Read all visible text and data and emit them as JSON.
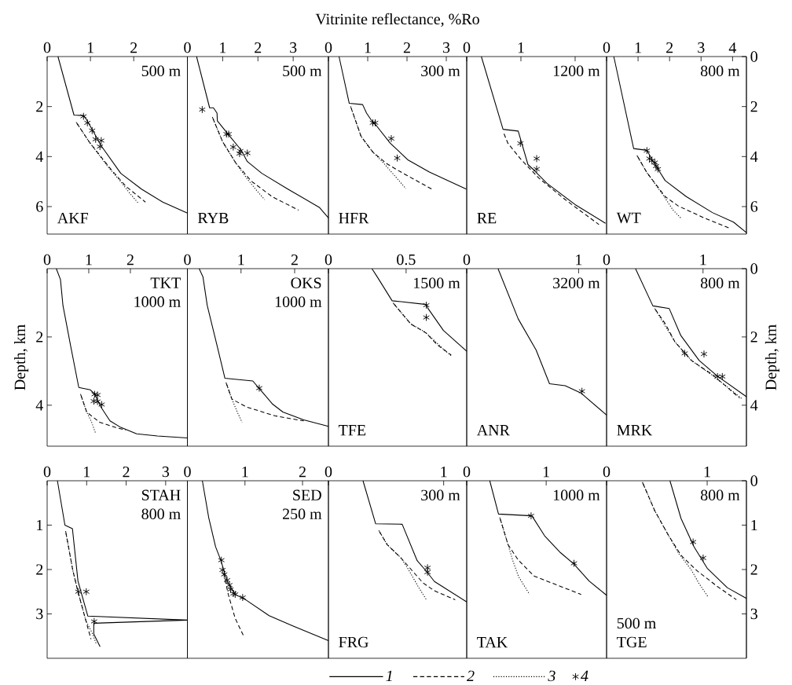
{
  "chart_data": [
    {
      "type": "line",
      "xlim": [
        0,
        3.24
      ],
      "xticks": [
        0,
        1,
        2
      ],
      "ylim": [
        7.1,
        0
      ],
      "yticks": [
        2,
        4,
        6
      ],
      "annotations": [
        "500 m",
        "AKF"
      ],
      "series": [
        {
          "type": "line",
          "line_style": "solid",
          "color": "#000000",
          "x": [
            0.25,
            0.62,
            0.84,
            0.91,
            1.27,
            1.7,
            2.18,
            2.67,
            3.24
          ],
          "values": [
            0,
            2.34,
            2.36,
            2.52,
            3.62,
            4.67,
            5.3,
            5.82,
            6.26
          ]
        },
        {
          "type": "line",
          "line_style": "dashed",
          "color": "#000000",
          "x": [
            0.65,
            0.97,
            1.45,
            1.82,
            2.27
          ],
          "values": [
            2.57,
            3.41,
            4.46,
            5.19,
            5.82
          ]
        },
        {
          "type": "line",
          "line_style": "dotted",
          "color": "#000000",
          "x": [
            0.65,
            0.97,
            1.4,
            1.7,
            1.9,
            2.1
          ],
          "values": [
            2.57,
            3.41,
            4.4,
            5.0,
            5.45,
            5.85
          ]
        },
        {
          "type": "scatter",
          "marker": "cross",
          "color": "#000000",
          "x": [
            0.84,
            0.93,
            1.04,
            1.12,
            1.25,
            1.22
          ],
          "values": [
            2.39,
            2.65,
            2.96,
            3.31,
            3.36,
            3.6
          ]
        }
      ]
    },
    {
      "type": "line",
      "xlim": [
        0,
        4.0
      ],
      "xticks": [
        0,
        1,
        2,
        3
      ],
      "ylim": [
        7.1,
        0
      ],
      "tick_labels": "x",
      "annotations": [
        "500 m",
        "RYB"
      ],
      "series": [
        {
          "type": "line",
          "line_style": "solid",
          "color": "#000000",
          "x": [
            0.26,
            0.63,
            0.74,
            0.84,
            0.85,
            1.15,
            1.52,
            1.7,
            2.11,
            2.85,
            3.74,
            4.0
          ],
          "values": [
            0,
            2.05,
            2.05,
            2.26,
            2.57,
            3.1,
            3.73,
            4.2,
            4.67,
            5.3,
            6.03,
            6.45
          ]
        },
        {
          "type": "line",
          "line_style": "dashed",
          "color": "#000000",
          "x": [
            0.69,
            1.0,
            1.37,
            1.81,
            2.41,
            3.15
          ],
          "values": [
            2.36,
            3.41,
            4.25,
            4.98,
            5.61,
            6.14
          ]
        },
        {
          "type": "line",
          "line_style": "dotted",
          "color": "#000000",
          "x": [
            0.69,
            1.0,
            1.37,
            1.7,
            1.93,
            2.19
          ],
          "values": [
            2.36,
            3.41,
            4.25,
            4.9,
            5.3,
            5.72
          ]
        },
        {
          "type": "scatter",
          "marker": "cross",
          "color": "#000000",
          "x": [
            0.42,
            1.11,
            1.17,
            1.3,
            1.5,
            1.48,
            1.7
          ],
          "values": [
            2.12,
            3.1,
            3.1,
            3.62,
            3.78,
            3.88,
            3.86
          ]
        }
      ]
    },
    {
      "type": "line",
      "xlabel": "Vitrinite reflectance, %Ro",
      "xlim": [
        0,
        3.52
      ],
      "xticks": [
        0,
        1,
        2,
        3
      ],
      "ylim": [
        7.1,
        0
      ],
      "tick_labels": "x",
      "annotations": [
        "300 m",
        "HFR"
      ],
      "series": [
        {
          "type": "line",
          "line_style": "solid",
          "color": "#000000",
          "x": [
            0.27,
            0.53,
            0.87,
            0.97,
            1.13,
            1.23,
            1.57,
            2.03,
            2.57,
            3.51
          ],
          "values": [
            0,
            1.87,
            1.92,
            2.26,
            2.63,
            2.78,
            3.46,
            4.14,
            4.62,
            5.3
          ]
        },
        {
          "type": "line",
          "line_style": "dashed",
          "color": "#000000",
          "x": [
            0.55,
            0.83,
            1.13,
            1.49,
            1.89,
            2.63
          ],
          "values": [
            1.93,
            3.19,
            3.82,
            4.29,
            4.66,
            5.3
          ]
        },
        {
          "type": "line",
          "line_style": "dotted",
          "color": "#000000",
          "x": [
            0.55,
            0.83,
            1.13,
            1.4,
            1.65,
            1.97
          ],
          "values": [
            1.93,
            3.19,
            3.82,
            4.25,
            4.7,
            5.28
          ]
        },
        {
          "type": "scatter",
          "marker": "cross",
          "color": "#000000",
          "x": [
            1.13,
            1.19,
            1.6,
            1.75
          ],
          "values": [
            2.65,
            2.65,
            3.28,
            4.06
          ]
        }
      ]
    },
    {
      "type": "line",
      "xlim": [
        0,
        2.58
      ],
      "xticks": [
        0,
        1,
        {
          "value": 2,
          "label": null
        }
      ],
      "ylim": [
        7.1,
        0
      ],
      "tick_labels": "x",
      "annotations": [
        "1200 m",
        "RE"
      ],
      "series": [
        {
          "type": "line",
          "line_style": "solid",
          "color": "#000000",
          "x": [
            0.27,
            0.67,
            0.95,
            1.13,
            1.24,
            1.48,
            2.0,
            2.56
          ],
          "values": [
            0,
            2.91,
            2.98,
            4.32,
            4.54,
            5.07,
            5.92,
            6.67
          ]
        },
        {
          "type": "line",
          "line_style": "dashed",
          "color": "#000000",
          "x": [
            0.67,
            0.76,
            1.0,
            1.33,
            1.81,
            2.44
          ],
          "values": [
            2.99,
            3.47,
            4.11,
            4.86,
            5.71,
            6.72
          ]
        },
        {
          "type": "scatter",
          "marker": "cross",
          "color": "#000000",
          "x": [
            0.99,
            1.29,
            1.29
          ],
          "values": [
            3.47,
            4.08,
            4.5
          ]
        }
      ]
    },
    {
      "type": "line",
      "xlim": [
        0,
        4.44
      ],
      "xticks": [
        0,
        1,
        2,
        3,
        4
      ],
      "ylim": [
        7.1,
        0
      ],
      "y2lim": [
        7.1,
        0
      ],
      "y2ticks": [
        0,
        2,
        4,
        6
      ],
      "annotations": [
        "800 m",
        "WT"
      ],
      "series": [
        {
          "type": "line",
          "line_style": "solid",
          "color": "#000000",
          "x": [
            0.23,
            0.86,
            1.28,
            1.44,
            1.65,
            1.86,
            2.53,
            3.36,
            4.03,
            4.44
          ],
          "values": [
            0,
            3.68,
            3.75,
            4.11,
            4.54,
            4.96,
            5.6,
            6.24,
            6.62,
            7.04
          ]
        },
        {
          "type": "line",
          "line_style": "dashed",
          "color": "#000000",
          "x": [
            0.94,
            1.28,
            1.86,
            2.28,
            3.11,
            3.94
          ],
          "values": [
            3.9,
            4.64,
            5.6,
            5.98,
            6.46,
            6.88
          ]
        },
        {
          "type": "line",
          "line_style": "dotted",
          "color": "#000000",
          "x": [
            0.94,
            1.28,
            1.8,
            2.11,
            2.36
          ],
          "values": [
            3.9,
            4.64,
            5.55,
            6.14,
            6.46
          ]
        },
        {
          "type": "scatter",
          "marker": "cross",
          "color": "#000000",
          "x": [
            1.28,
            1.36,
            1.44,
            1.53,
            1.57,
            1.63
          ],
          "values": [
            3.76,
            4.08,
            4.16,
            4.24,
            4.38,
            4.5
          ]
        }
      ]
    },
    {
      "type": "line",
      "ylabel": "Depth, km",
      "xlim": [
        0,
        3.37
      ],
      "xticks": [
        0,
        1,
        2
      ],
      "ylim": [
        5.2,
        0
      ],
      "yticks": [
        2,
        4
      ],
      "annotations": [
        "TKT",
        "1000 m"
      ],
      "series": [
        {
          "type": "line",
          "line_style": "solid",
          "color": "#000000",
          "x": [
            0.22,
            0.32,
            0.38,
            0.57,
            0.76,
            1.04,
            1.14,
            1.29,
            1.51,
            1.77,
            2.15,
            2.65,
            3.37
          ],
          "values": [
            0,
            0.32,
            1.08,
            2.3,
            3.48,
            3.55,
            3.67,
            4.05,
            4.46,
            4.65,
            4.84,
            4.9,
            4.96
          ]
        },
        {
          "type": "line",
          "line_style": "dashed",
          "color": "#000000",
          "x": [
            0.79,
            0.95,
            1.26,
            1.64,
            1.89
          ],
          "values": [
            3.63,
            4.2,
            4.5,
            4.65,
            4.73
          ]
        },
        {
          "type": "line",
          "line_style": "dotted",
          "color": "#000000",
          "x": [
            0.79,
            0.95,
            1.07,
            1.17
          ],
          "values": [
            3.63,
            4.2,
            4.5,
            4.84
          ]
        },
        {
          "type": "scatter",
          "marker": "cross",
          "color": "#000000",
          "x": [
            1.14,
            1.21,
            1.12,
            1.21,
            1.31
          ],
          "values": [
            3.68,
            3.7,
            3.88,
            3.89,
            3.98
          ]
        }
      ]
    },
    {
      "type": "line",
      "xlim": [
        0,
        2.63
      ],
      "xticks": [
        0,
        1,
        2
      ],
      "ylim": [
        5.2,
        0
      ],
      "tick_labels": "x",
      "annotations": [
        "OKS",
        "1000 m"
      ],
      "series": [
        {
          "type": "line",
          "line_style": "solid",
          "color": "#000000",
          "x": [
            0.22,
            0.29,
            0.37,
            0.56,
            0.7,
            1.22,
            1.34,
            1.59,
            1.78,
            2.17,
            2.63
          ],
          "values": [
            0,
            0.24,
            1.08,
            2.3,
            3.21,
            3.29,
            3.51,
            3.97,
            4.2,
            4.43,
            4.62
          ]
        },
        {
          "type": "line",
          "line_style": "dashed",
          "color": "#000000",
          "x": [
            0.71,
            0.83,
            1.1,
            1.63,
            2.17
          ],
          "values": [
            3.29,
            3.82,
            4.05,
            4.31,
            4.46
          ]
        },
        {
          "type": "line",
          "line_style": "dotted",
          "color": "#000000",
          "x": [
            0.71,
            0.83,
            0.93,
            1.02
          ],
          "values": [
            3.29,
            3.82,
            4.2,
            4.5
          ]
        },
        {
          "type": "scatter",
          "marker": "cross",
          "color": "#000000",
          "x": [
            1.34
          ],
          "values": [
            3.5
          ]
        }
      ]
    },
    {
      "type": "line",
      "xlim": [
        0,
        0.89
      ],
      "xticks": [
        0,
        0.5
      ],
      "ylim": [
        5.2,
        0
      ],
      "tick_labels": "x",
      "annotations": [
        "1500 m",
        "TFE"
      ],
      "series": [
        {
          "type": "line",
          "line_style": "solid",
          "color": "#000000",
          "x": [
            0.28,
            0.31,
            0.41,
            0.63,
            0.64,
            0.74,
            0.89
          ],
          "values": [
            0,
            0.21,
            0.94,
            1.05,
            1.16,
            1.81,
            2.42
          ]
        },
        {
          "type": "line",
          "line_style": "dashed",
          "color": "#000000",
          "x": [
            0.41,
            0.53,
            0.63,
            0.7,
            0.79
          ],
          "values": [
            0.97,
            1.62,
            1.89,
            2.23,
            2.53
          ]
        },
        {
          "type": "line",
          "line_style": "dotted",
          "color": "#000000",
          "x": [
            0.41,
            0.53,
            0.62,
            0.68,
            0.75,
            0.79
          ],
          "values": [
            0.97,
            1.62,
            1.85,
            2.1,
            2.4,
            2.55
          ]
        },
        {
          "type": "scatter",
          "marker": "cross",
          "color": "#000000",
          "x": [
            0.63,
            0.63
          ],
          "values": [
            1.07,
            1.43
          ]
        }
      ]
    },
    {
      "type": "line",
      "xlim": [
        0,
        1.25
      ],
      "xticks": [
        0,
        1
      ],
      "ylim": [
        5.2,
        0
      ],
      "tick_labels": "x",
      "annotations": [
        "3200 m",
        "ANR"
      ],
      "series": [
        {
          "type": "line",
          "line_style": "solid",
          "color": "#000000",
          "x": [
            0.28,
            0.46,
            0.62,
            0.74,
            0.88,
            1.02,
            1.25
          ],
          "values": [
            0,
            1.47,
            2.38,
            3.37,
            3.43,
            3.64,
            4.29
          ]
        },
        {
          "type": "scatter",
          "marker": "cross",
          "color": "#000000",
          "x": [
            1.03
          ],
          "values": [
            3.59
          ]
        }
      ]
    },
    {
      "type": "line",
      "y2label": "Depth, km",
      "xlim": [
        0,
        1.45
      ],
      "xticks": [
        0,
        1
      ],
      "ylim": [
        5.2,
        0
      ],
      "y2lim": [
        5.2,
        0
      ],
      "y2ticks": [
        0,
        2,
        4
      ],
      "annotations": [
        "800 m",
        "MRK"
      ],
      "series": [
        {
          "type": "line",
          "line_style": "solid",
          "color": "#000000",
          "x": [
            0.3,
            0.48,
            0.65,
            0.77,
            0.96,
            1.15,
            1.45
          ],
          "values": [
            0,
            1.09,
            1.17,
            1.96,
            2.69,
            3.15,
            3.75
          ]
        },
        {
          "type": "line",
          "line_style": "dashed",
          "color": "#000000",
          "x": [
            0.49,
            0.61,
            0.71,
            0.88,
            1.1,
            1.38
          ],
          "values": [
            1.13,
            1.62,
            2.15,
            2.69,
            3.11,
            3.79
          ]
        },
        {
          "type": "line",
          "line_style": "dotted",
          "color": "#000000",
          "x": [
            0.49,
            0.71,
            0.88,
            1.1,
            1.4
          ],
          "values": [
            1.13,
            2.15,
            2.69,
            3.13,
            3.8
          ]
        },
        {
          "type": "scatter",
          "marker": "cross",
          "color": "#000000",
          "x": [
            0.81,
            1.01,
            1.15,
            1.2
          ],
          "values": [
            2.48,
            2.5,
            3.16,
            3.16
          ]
        }
      ]
    },
    {
      "type": "line",
      "xlim": [
        0,
        3.55
      ],
      "xticks": [
        0,
        1,
        2,
        3
      ],
      "ylim": [
        4.0,
        0
      ],
      "yticks": [
        1,
        2,
        3
      ],
      "annotations": [
        "STAH",
        "800 m"
      ],
      "series": [
        {
          "type": "line",
          "line_style": "solid",
          "color": "#000000",
          "x": [
            0.26,
            0.45,
            0.64,
            0.78,
            1.03,
            3.55,
            1.18,
            1.18,
            1.34
          ],
          "values": [
            0,
            1.0,
            1.08,
            2.26,
            3.05,
            3.14,
            3.21,
            3.45,
            3.74
          ]
        },
        {
          "type": "line",
          "line_style": "dashed",
          "color": "#000000",
          "x": [
            0.46,
            0.65,
            0.78,
            0.98,
            1.11
          ],
          "values": [
            1.1,
            2.02,
            2.5,
            3.15,
            3.57
          ]
        },
        {
          "type": "line",
          "line_style": "dotted",
          "color": "#000000",
          "x": [
            0.46,
            0.65,
            0.78,
            0.98,
            1.15,
            1.25
          ],
          "values": [
            1.1,
            2.02,
            2.5,
            3.15,
            3.45,
            3.69
          ]
        },
        {
          "type": "scatter",
          "marker": "cross",
          "color": "#000000",
          "x": [
            0.79,
            0.99,
            1.19
          ],
          "values": [
            2.5,
            2.5,
            3.17
          ]
        }
      ]
    },
    {
      "type": "line",
      "xlim": [
        0,
        2.45
      ],
      "xticks": [
        0,
        1,
        2
      ],
      "ylim": [
        4.0,
        0
      ],
      "tick_labels": "x",
      "annotations": [
        "SED",
        "250 m"
      ],
      "series": [
        {
          "type": "line",
          "line_style": "solid",
          "color": "#000000",
          "x": [
            0.26,
            0.37,
            0.49,
            0.58,
            0.69,
            0.83,
            1.01,
            1.42,
            1.83,
            2.45
          ],
          "values": [
            0,
            0.83,
            1.49,
            1.79,
            2.26,
            2.56,
            2.68,
            3.04,
            3.27,
            3.6
          ]
        },
        {
          "type": "line",
          "line_style": "dashed",
          "color": "#000000",
          "x": [
            0.62,
            0.71,
            0.83,
            0.97
          ],
          "values": [
            2.02,
            2.56,
            3.1,
            3.48
          ]
        },
        {
          "type": "scatter",
          "marker": "cross",
          "color": "#000000",
          "x": [
            0.59,
            0.61,
            0.64,
            0.69,
            0.73,
            0.75,
            0.8,
            0.83,
            0.96
          ],
          "values": [
            1.79,
            2.01,
            2.11,
            2.24,
            2.35,
            2.45,
            2.54,
            2.56,
            2.63
          ]
        }
      ]
    },
    {
      "type": "line",
      "xlim": [
        0,
        1.2
      ],
      "xticks": [
        0,
        1
      ],
      "ylim": [
        4.0,
        0
      ],
      "tick_labels": "x",
      "legend": "bottom",
      "annotations": [
        "300 m",
        "FRG"
      ],
      "series": [
        {
          "type": "line",
          "name": "1",
          "line_style": "solid",
          "color": "#000000",
          "x": [
            0.3,
            0.41,
            0.64,
            0.77,
            0.85,
            0.92,
            1.2
          ],
          "values": [
            0,
            0.97,
            0.98,
            1.8,
            2.04,
            2.27,
            2.73
          ]
        },
        {
          "type": "line",
          "name": "2",
          "line_style": "dashed",
          "color": "#000000",
          "x": [
            0.43,
            0.51,
            0.63,
            0.82,
            0.92,
            1.1
          ],
          "values": [
            1.09,
            1.44,
            1.74,
            2.3,
            2.48,
            2.68
          ]
        },
        {
          "type": "line",
          "name": "3",
          "line_style": "dotted",
          "color": "#000000",
          "x": [
            0.43,
            0.51,
            0.63,
            0.69,
            0.78,
            0.85
          ],
          "values": [
            1.09,
            1.44,
            1.74,
            1.98,
            2.39,
            2.68
          ]
        },
        {
          "type": "scatter",
          "name": "4",
          "marker": "cross",
          "color": "#000000",
          "x": [
            0.86,
            0.86
          ],
          "values": [
            1.96,
            2.06
          ]
        }
      ]
    },
    {
      "type": "line",
      "xlim": [
        0,
        1.76
      ],
      "xticks": [
        0,
        1
      ],
      "ylim": [
        4.0,
        0
      ],
      "tick_labels": "x",
      "annotations": [
        "1000 m",
        "TAK"
      ],
      "series": [
        {
          "type": "line",
          "line_style": "solid",
          "color": "#000000",
          "x": [
            0.29,
            0.4,
            0.82,
            0.98,
            1.18,
            1.35,
            1.54,
            1.76
          ],
          "values": [
            0,
            0.75,
            0.79,
            1.24,
            1.62,
            1.88,
            2.26,
            2.58
          ]
        },
        {
          "type": "line",
          "line_style": "dashed",
          "color": "#000000",
          "x": [
            0.41,
            0.52,
            0.65,
            0.85,
            1.18,
            1.44
          ],
          "values": [
            0.79,
            1.44,
            1.79,
            2.15,
            2.38,
            2.56
          ]
        },
        {
          "type": "line",
          "line_style": "dotted",
          "color": "#000000",
          "x": [
            0.41,
            0.52,
            0.58,
            0.65,
            0.79
          ],
          "values": [
            0.79,
            1.44,
            1.8,
            2.15,
            2.56
          ]
        },
        {
          "type": "scatter",
          "marker": "cross",
          "color": "#000000",
          "x": [
            0.81,
            1.35
          ],
          "values": [
            0.79,
            1.86
          ]
        }
      ]
    },
    {
      "type": "line",
      "xlim": [
        0,
        1.39
      ],
      "xticks": [
        0,
        1
      ],
      "ylim": [
        4.0,
        0
      ],
      "y2lim": [
        4.0,
        0
      ],
      "y2ticks": [
        0,
        1,
        2,
        3
      ],
      "annotations": [
        "800 m",
        "500 m",
        "TGE"
      ],
      "series": [
        {
          "type": "line",
          "line_style": "solid",
          "color": "#000000",
          "x": [
            0.63,
            0.74,
            0.87,
            1.0,
            1.2,
            1.39
          ],
          "values": [
            0,
            0.85,
            1.49,
            1.97,
            2.41,
            2.65
          ]
        },
        {
          "type": "line",
          "line_style": "dashed",
          "color": "#000000",
          "x": [
            0.35,
            0.48,
            0.61,
            0.74,
            0.9,
            1.1,
            1.29
          ],
          "values": [
            0,
            0.68,
            1.21,
            1.68,
            2.03,
            2.38,
            2.68
          ]
        },
        {
          "type": "line",
          "line_style": "dotted",
          "color": "#000000",
          "x": [
            0.35,
            0.48,
            0.61,
            0.72,
            0.84,
            0.92,
            1.01
          ],
          "values": [
            0,
            0.68,
            1.21,
            1.65,
            2.0,
            2.32,
            2.62
          ]
        },
        {
          "type": "scatter",
          "marker": "cross",
          "color": "#000000",
          "x": [
            0.86,
            0.96
          ],
          "values": [
            1.38,
            1.74
          ]
        }
      ]
    }
  ]
}
